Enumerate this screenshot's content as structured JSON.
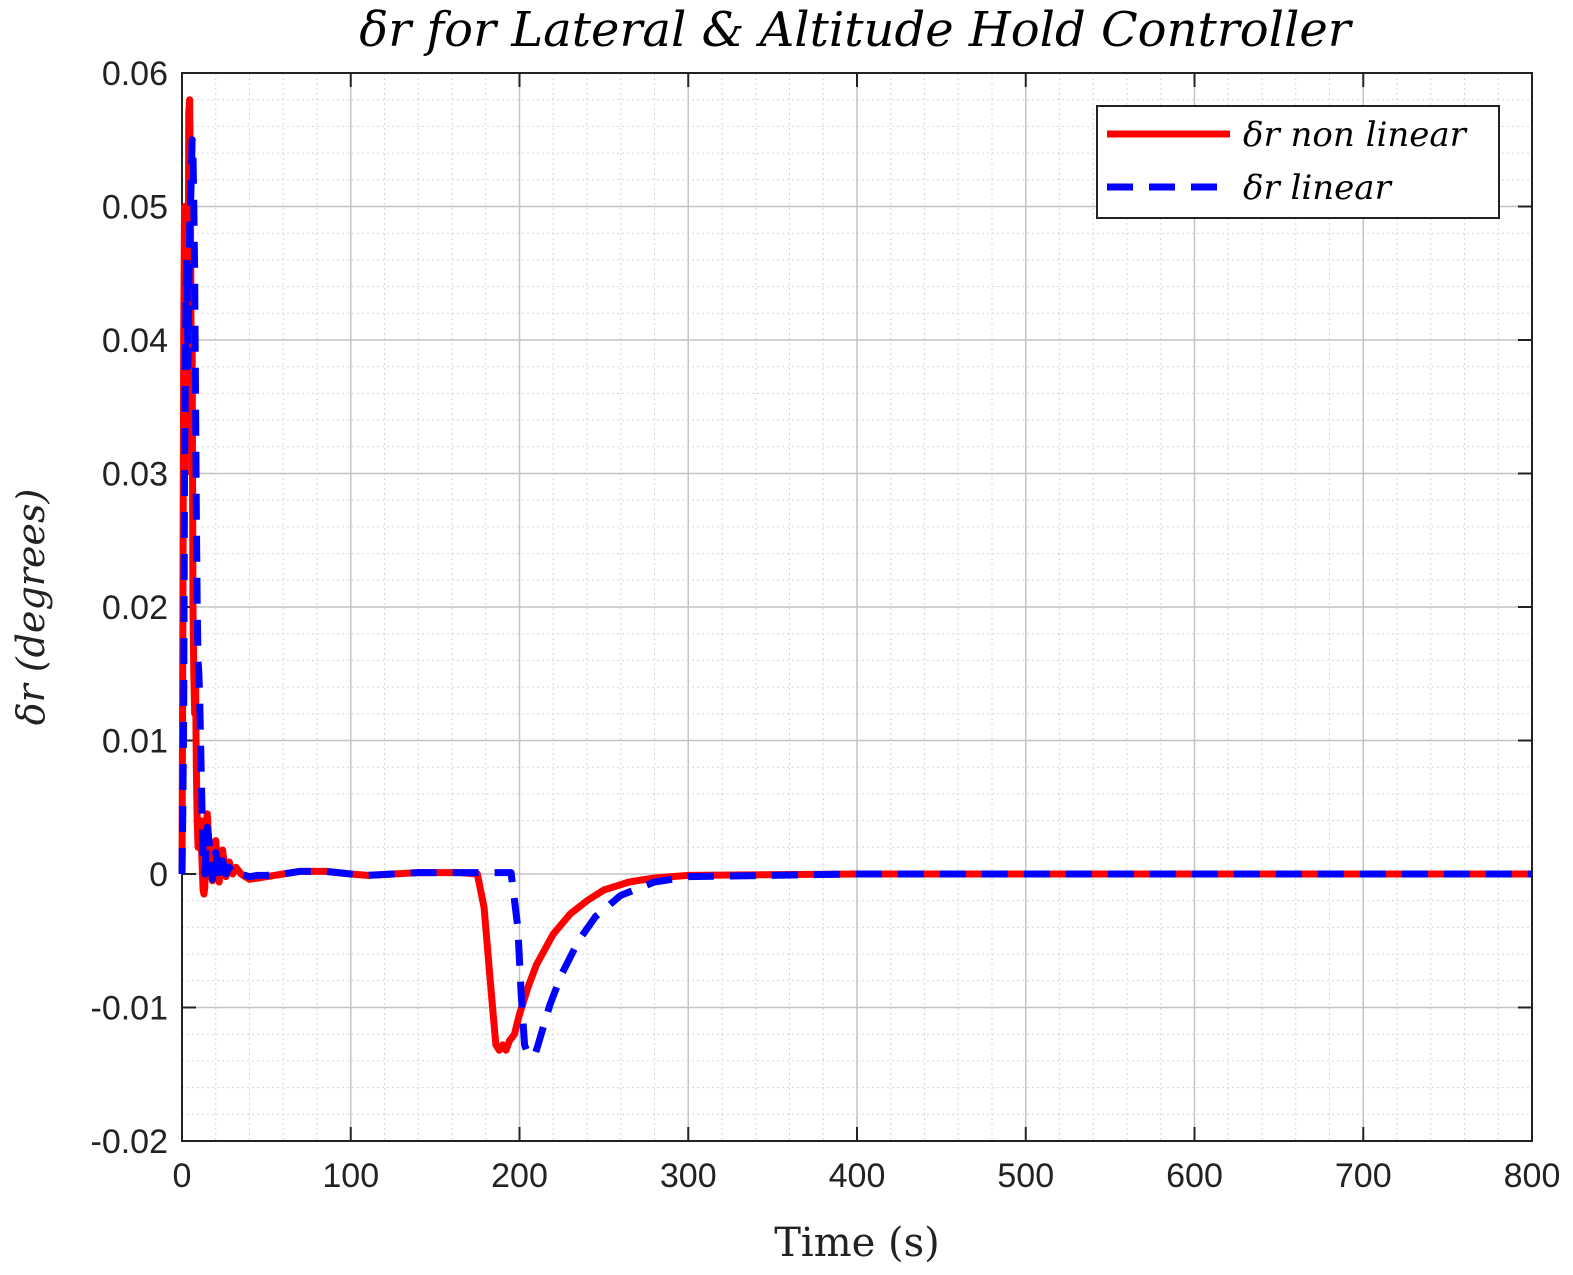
{
  "chart_data": {
    "type": "line",
    "title": "δr for Lateral & Altitude Hold Controller",
    "xlabel": "Time (s)",
    "ylabel": "δr (degrees)",
    "xlim": [
      0,
      800
    ],
    "ylim": [
      -0.02,
      0.06
    ],
    "xticks": [
      0,
      100,
      200,
      300,
      400,
      500,
      600,
      700,
      800
    ],
    "xtick_labels": [
      "0",
      "100",
      "200",
      "300",
      "400",
      "500",
      "600",
      "700",
      "800"
    ],
    "yticks": [
      -0.02,
      -0.01,
      0,
      0.01,
      0.02,
      0.03,
      0.04,
      0.05,
      0.06
    ],
    "ytick_labels": [
      "-0.02",
      "-0.01",
      "0",
      "0.01",
      "0.02",
      "0.03",
      "0.04",
      "0.05",
      "0.06"
    ],
    "grid": true,
    "minor_grid": true,
    "legend_position": "top-right",
    "series": [
      {
        "name": "δr non linear",
        "style": "solid",
        "color": "#ff0000",
        "x": [
          0,
          0.5,
          1,
          1.5,
          2,
          2.5,
          3,
          3.5,
          4,
          4.5,
          5,
          5.5,
          6,
          6.5,
          7,
          7.5,
          8,
          8.5,
          9,
          9.5,
          10,
          10.5,
          11,
          11.5,
          12,
          12.5,
          13,
          13.5,
          14,
          14.5,
          15,
          16,
          17,
          18,
          19,
          20,
          21,
          22,
          23,
          24,
          25,
          26,
          28,
          30,
          32,
          35,
          40,
          45,
          50,
          60,
          70,
          85,
          100,
          110,
          125,
          140,
          155,
          165,
          175,
          179,
          183,
          186,
          188,
          190,
          192,
          194,
          197,
          200,
          205,
          210,
          220,
          230,
          240,
          250,
          265,
          280,
          300,
          400,
          500,
          600,
          700,
          800
        ],
        "y": [
          0,
          0.018,
          0.04,
          0.05,
          0.03,
          0.045,
          0.048,
          0.036,
          0.057,
          0.058,
          0.052,
          0.035,
          0.04,
          0.02,
          0.015,
          0.012,
          0.015,
          0.008,
          0.004,
          0.002,
          0.004,
          0.0035,
          0.004,
          0.002,
          0.0005,
          -0.0012,
          -0.0015,
          -0.001,
          0.002,
          0.004,
          0.0045,
          0.002,
          0.0003,
          -0.0005,
          0.0015,
          0.0025,
          0.0008,
          -0.0006,
          0.0004,
          0.0018,
          0.0009,
          -0.0002,
          0.0009,
          0.0,
          0.0005,
          0.0,
          -0.0004,
          -0.0003,
          -0.0002,
          0.0,
          0.0002,
          0.0002,
          0.0,
          -0.0001,
          0.0,
          0.0001,
          0.0001,
          0.0001,
          0.0,
          -0.0025,
          -0.0085,
          -0.0128,
          -0.0132,
          -0.0128,
          -0.0132,
          -0.0125,
          -0.012,
          -0.0105,
          -0.0085,
          -0.0068,
          -0.0045,
          -0.003,
          -0.002,
          -0.0012,
          -0.0006,
          -0.0003,
          -0.0001,
          0.0,
          0.0,
          0.0,
          0.0,
          0.0
        ]
      },
      {
        "name": "δr linear",
        "style": "dashed",
        "color": "#0000ff",
        "x": [
          0,
          0.5,
          1,
          1.5,
          2,
          2.5,
          3,
          3.5,
          4,
          4.5,
          5,
          5.5,
          6,
          6.5,
          7,
          7.5,
          8,
          8.5,
          9,
          9.5,
          10,
          10.5,
          11,
          11.5,
          12,
          12.5,
          13,
          13.5,
          14,
          14.5,
          15,
          16,
          17,
          18,
          19,
          20,
          21,
          22,
          23,
          24,
          25,
          26,
          28,
          30,
          32,
          35,
          40,
          45,
          50,
          60,
          70,
          85,
          100,
          110,
          125,
          140,
          155,
          165,
          175,
          185,
          195,
          199,
          201,
          203,
          205,
          207,
          209,
          211,
          214,
          218,
          225,
          235,
          245,
          260,
          280,
          300,
          400,
          500,
          600,
          700,
          800
        ],
        "y": [
          0,
          0.005,
          0.012,
          0.03,
          0.038,
          0.044,
          0.046,
          0.038,
          0.044,
          0.048,
          0.05,
          0.052,
          0.055,
          0.054,
          0.05,
          0.045,
          0.036,
          0.027,
          0.02,
          0.016,
          0.015,
          0.013,
          0.01,
          0.007,
          0.004,
          0.0015,
          0.0005,
          0.0,
          0.001,
          0.0025,
          0.0035,
          0.0025,
          0.0008,
          -0.0004,
          0.0008,
          0.0016,
          0.0008,
          -0.0002,
          0.0003,
          0.001,
          0.0006,
          0.0,
          0.0005,
          0.0001,
          0.0003,
          0.0,
          -0.0002,
          -0.0001,
          -0.0001,
          0.0,
          0.0002,
          0.0002,
          0.0,
          -0.0001,
          0.0,
          0.0001,
          0.0001,
          0.0001,
          0.0001,
          0.0001,
          0.0001,
          -0.004,
          -0.009,
          -0.0128,
          -0.0135,
          -0.0136,
          -0.0136,
          -0.0128,
          -0.0115,
          -0.0098,
          -0.0075,
          -0.005,
          -0.0032,
          -0.0016,
          -0.0006,
          -0.0002,
          0.0,
          0.0,
          0.0,
          0.0,
          0.0
        ]
      }
    ]
  }
}
